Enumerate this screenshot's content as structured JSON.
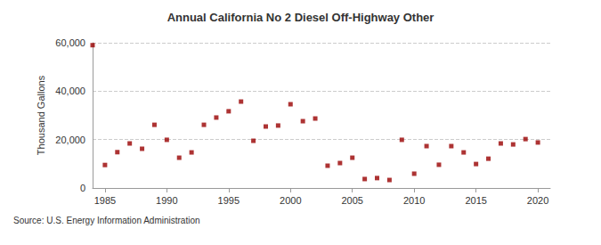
{
  "chart_data": {
    "type": "scatter",
    "title": "Annual California No 2 Diesel Off-Highway Other",
    "y_label": "Thousand Gallons",
    "source": "Source: U.S. Energy Information Administration",
    "x": [
      1984,
      1985,
      1986,
      1987,
      1988,
      1989,
      1990,
      1991,
      1992,
      1993,
      1994,
      1995,
      1996,
      1997,
      1998,
      1999,
      2000,
      2001,
      2002,
      2003,
      2004,
      2005,
      2006,
      2007,
      2008,
      2009,
      2010,
      2011,
      2012,
      2013,
      2014,
      2015,
      2016,
      2017,
      2018,
      2019,
      2020
    ],
    "values": [
      59000,
      9500,
      14800,
      18400,
      16200,
      26100,
      19900,
      12500,
      14700,
      26100,
      29100,
      31700,
      35700,
      19500,
      25400,
      25800,
      34600,
      27600,
      28700,
      9200,
      10300,
      12500,
      3700,
      4100,
      3300,
      19900,
      5900,
      17300,
      9600,
      17300,
      14700,
      9900,
      12100,
      18400,
      18000,
      20200,
      18800
    ],
    "color": "#990000",
    "marker": "square",
    "xlim": [
      1984,
      2021
    ],
    "xticks": [
      1985,
      1990,
      1995,
      2000,
      2005,
      2010,
      2015,
      2020
    ],
    "ylim": [
      0,
      60000
    ],
    "yticks": [
      0,
      {
        "value": 20000,
        "label": "20,000"
      },
      {
        "value": 40000,
        "label": "40,000"
      },
      {
        "value": 60000,
        "label": "60,000"
      }
    ],
    "grid": true
  }
}
